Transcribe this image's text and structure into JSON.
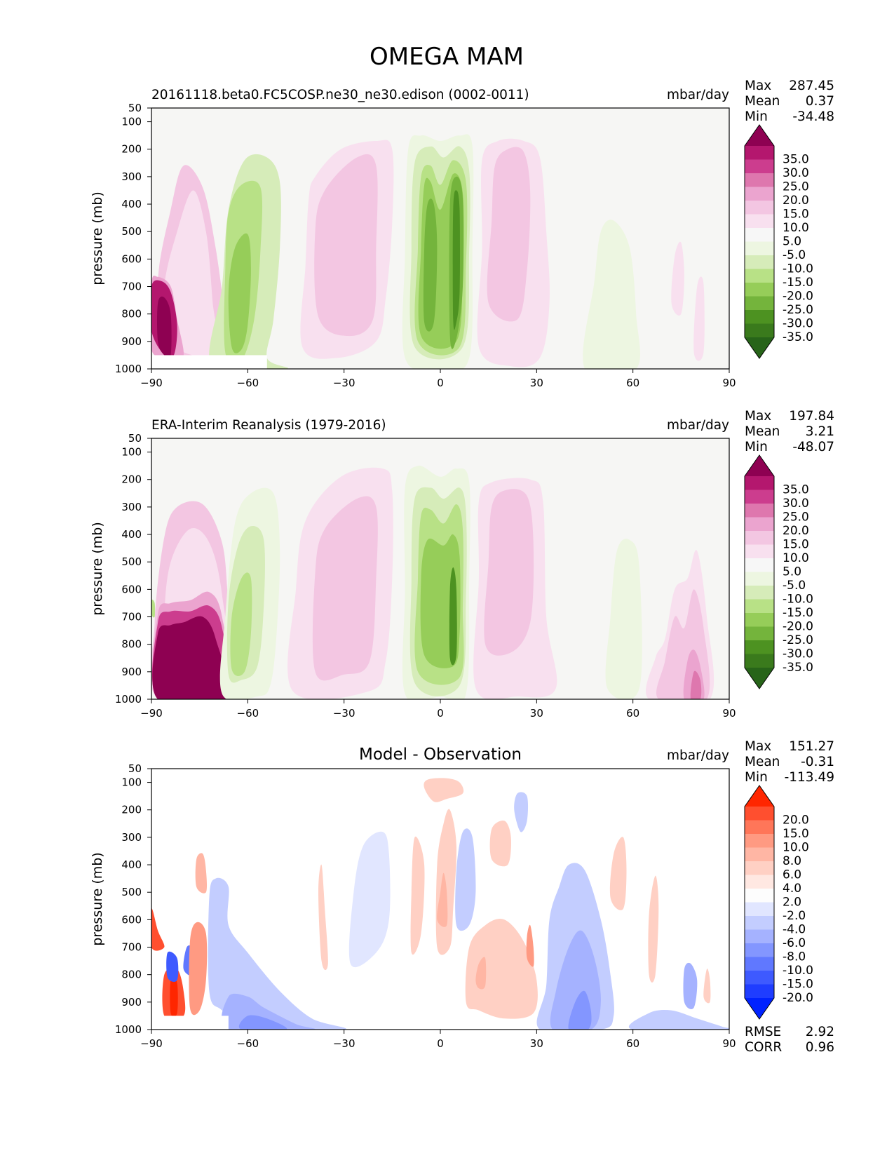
{
  "figure": {
    "title": "OMEGA MAM"
  },
  "panels": [
    {
      "title_left": "20161118.beta0.FC5COSP.ne30_ne30.edison (0002-0011)",
      "title_center": "",
      "units": "mbar/day",
      "stats": [
        {
          "label": "Max",
          "value": "287.45"
        },
        {
          "label": "Mean",
          "value": "0.37"
        },
        {
          "label": "Min",
          "value": "-34.48"
        }
      ]
    },
    {
      "title_left": "ERA-Interim Reanalysis (1979-2016)",
      "title_center": "",
      "units": "mbar/day",
      "stats": [
        {
          "label": "Max",
          "value": "197.84"
        },
        {
          "label": "Mean",
          "value": "3.21"
        },
        {
          "label": "Min",
          "value": "-48.07"
        }
      ]
    },
    {
      "title_left": "",
      "title_center": "Model - Observation",
      "units": "mbar/day",
      "stats": [
        {
          "label": "Max",
          "value": "151.27"
        },
        {
          "label": "Mean",
          "value": "-0.31"
        },
        {
          "label": "Min",
          "value": "-113.49"
        }
      ],
      "extra_stats": [
        {
          "label": "RMSE",
          "value": "2.92"
        },
        {
          "label": "CORR",
          "value": "0.96"
        }
      ]
    }
  ],
  "colorbars": {
    "main": {
      "labels": [
        "35.0",
        "30.0",
        "25.0",
        "20.0",
        "15.0",
        "10.0",
        "5.0",
        "-5.0",
        "-10.0",
        "-15.0",
        "-20.0",
        "-25.0",
        "-30.0",
        "-35.0"
      ],
      "colors": [
        "#8e0152",
        "#b4176e",
        "#cc3d8e",
        "#de77ae",
        "#eba4cf",
        "#f3c6e2",
        "#f8e0ef",
        "#f7f7f7",
        "#edf6e1",
        "#d6ecb9",
        "#b8e186",
        "#96cd59",
        "#74b43c",
        "#4d9221",
        "#3a7a1c",
        "#276419"
      ]
    },
    "diff": {
      "labels": [
        "20.0",
        "15.0",
        "10.0",
        "8.0",
        "6.0",
        "4.0",
        "2.0",
        "-2.0",
        "-4.0",
        "-6.0",
        "-8.0",
        "-10.0",
        "-15.0",
        "-20.0"
      ],
      "colors": [
        "#ff2600",
        "#ff4f2f",
        "#ff7659",
        "#ff9a82",
        "#ffb6a4",
        "#ffd0c4",
        "#ffe8e2",
        "#fdfdfd",
        "#e1e6ff",
        "#c3cdff",
        "#a5b2ff",
        "#8396ff",
        "#6078ff",
        "#3e5aff",
        "#1f3dff",
        "#0022ff"
      ]
    }
  },
  "chart_data": [
    {
      "type": "heatmap",
      "title": "20161118.beta0.FC5COSP.ne30_ne30.edison (0002-0011)",
      "units": "mbar/day",
      "xlabel": "",
      "ylabel": "pressure (mb)",
      "xlim": [
        -90,
        90
      ],
      "ylim": [
        1000,
        50
      ],
      "xticks": [
        -90,
        -60,
        -30,
        0,
        30,
        60,
        90
      ],
      "yticks": [
        50,
        100,
        200,
        300,
        400,
        500,
        600,
        700,
        800,
        900,
        1000
      ],
      "features": [
        {
          "lat": -84,
          "p": 820,
          "value": 40
        },
        {
          "lat": -62,
          "p": 650,
          "value": -18
        },
        {
          "lat": -25,
          "p": 550,
          "value": 10
        },
        {
          "lat": 5,
          "p": 550,
          "value": -32
        },
        {
          "lat": 20,
          "p": 400,
          "value": 16
        },
        {
          "lat": 55,
          "p": 800,
          "value": -6
        }
      ]
    },
    {
      "type": "heatmap",
      "title": "ERA-Interim Reanalysis (1979-2016)",
      "units": "mbar/day",
      "xlabel": "",
      "ylabel": "pressure (mb)",
      "xlim": [
        -90,
        90
      ],
      "ylim": [
        1000,
        50
      ],
      "xticks": [
        -90,
        -60,
        -30,
        0,
        30,
        60,
        90
      ],
      "yticks": [
        50,
        100,
        200,
        300,
        400,
        500,
        600,
        700,
        800,
        900,
        1000
      ],
      "features": [
        {
          "lat": -77,
          "p": 880,
          "value": 40
        },
        {
          "lat": -64,
          "p": 700,
          "value": -16
        },
        {
          "lat": -28,
          "p": 550,
          "value": 9
        },
        {
          "lat": 2,
          "p": 550,
          "value": -30
        },
        {
          "lat": 20,
          "p": 400,
          "value": 15
        },
        {
          "lat": 78,
          "p": 900,
          "value": 22
        }
      ]
    },
    {
      "type": "heatmap",
      "title": "Model - Observation",
      "units": "mbar/day",
      "xlabel": "",
      "ylabel": "pressure (mb)",
      "xlim": [
        -90,
        90
      ],
      "ylim": [
        1000,
        50
      ],
      "xticks": [
        -90,
        -60,
        -30,
        0,
        30,
        60,
        90
      ],
      "yticks": [
        50,
        100,
        200,
        300,
        400,
        500,
        600,
        700,
        800,
        900,
        1000
      ],
      "features": [
        {
          "lat": -85,
          "p": 880,
          "value": 20
        },
        {
          "lat": -82,
          "p": 760,
          "value": -20
        },
        {
          "lat": -25,
          "p": 500,
          "value": -3
        },
        {
          "lat": 0,
          "p": 450,
          "value": 8
        },
        {
          "lat": 28,
          "p": 700,
          "value": 8
        },
        {
          "lat": 45,
          "p": 850,
          "value": -6
        }
      ]
    }
  ]
}
